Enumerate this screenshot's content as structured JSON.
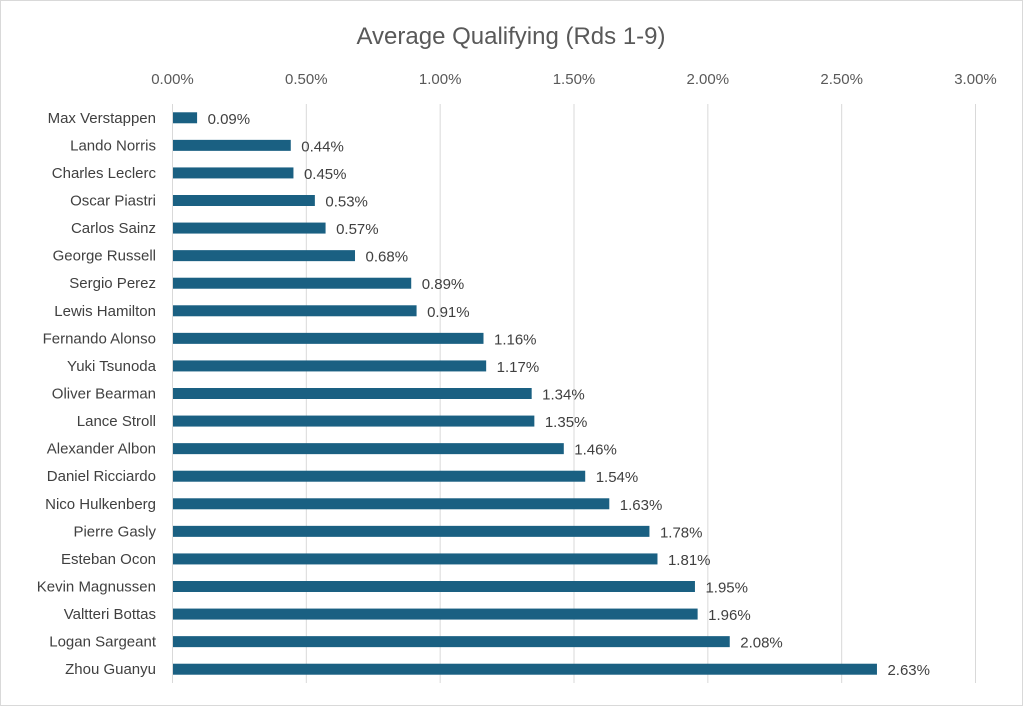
{
  "chart_data": {
    "type": "bar",
    "orientation": "horizontal",
    "title": "Average Qualifying (Rds 1-9)",
    "xlabel": "",
    "ylabel": "",
    "xlim": [
      0,
      3.0
    ],
    "x_unit": "percent",
    "x_ticks": [
      0,
      0.5,
      1.0,
      1.5,
      2.0,
      2.5,
      3.0
    ],
    "x_tick_labels": [
      "0.00%",
      "0.50%",
      "1.00%",
      "1.50%",
      "2.00%",
      "2.50%",
      "3.00%"
    ],
    "x_axis_position": "top",
    "grid": true,
    "legend": "none",
    "bar_color": "#1a6082",
    "categories": [
      "Max Verstappen",
      "Lando Norris",
      "Charles Leclerc",
      "Oscar Piastri",
      "Carlos Sainz",
      "George Russell",
      "Sergio Perez",
      "Lewis Hamilton",
      "Fernando Alonso",
      "Yuki Tsunoda",
      "Oliver Bearman",
      "Lance Stroll",
      "Alexander Albon",
      "Daniel Ricciardo",
      "Nico Hulkenberg",
      "Pierre Gasly",
      "Esteban Ocon",
      "Kevin Magnussen",
      "Valtteri Bottas",
      "Logan Sargeant",
      "Zhou Guanyu"
    ],
    "values": [
      0.09,
      0.44,
      0.45,
      0.53,
      0.57,
      0.68,
      0.89,
      0.91,
      1.16,
      1.17,
      1.34,
      1.35,
      1.46,
      1.54,
      1.63,
      1.78,
      1.81,
      1.95,
      1.96,
      2.08,
      2.63
    ],
    "data_labels": [
      "0.09%",
      "0.44%",
      "0.45%",
      "0.53%",
      "0.57%",
      "0.68%",
      "0.89%",
      "0.91%",
      "1.16%",
      "1.17%",
      "1.34%",
      "1.35%",
      "1.46%",
      "1.54%",
      "1.63%",
      "1.78%",
      "1.81%",
      "1.95%",
      "1.96%",
      "2.08%",
      "2.63%"
    ]
  }
}
